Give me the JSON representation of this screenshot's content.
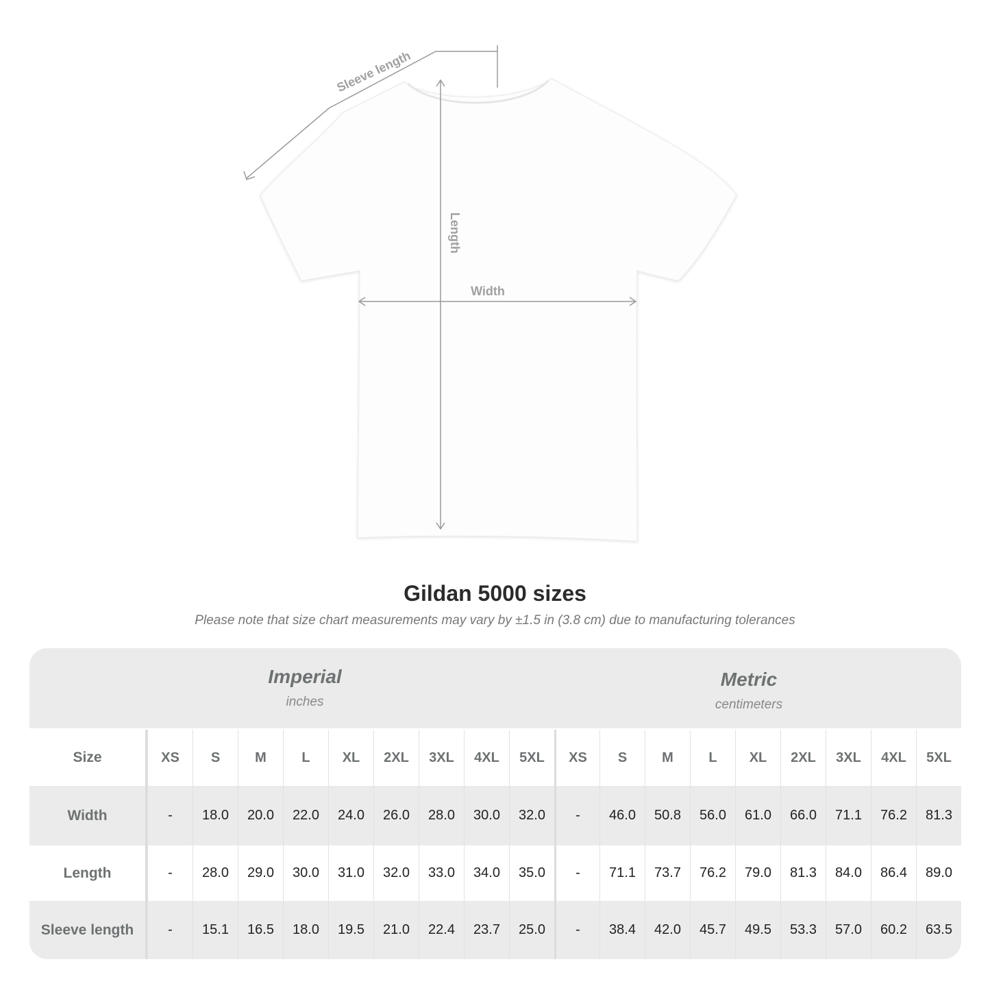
{
  "diagram": {
    "labels": {
      "sleeve": "Sleeve length",
      "length": "Length",
      "width": "Width"
    }
  },
  "title": "Gildan 5000 sizes",
  "note": "Please note that size chart measurements may vary by ±1.5 in (3.8 cm) due to manufacturing tolerances",
  "table": {
    "imperial": {
      "name": "Imperial",
      "unit": "inches"
    },
    "metric": {
      "name": "Metric",
      "unit": "centimeters"
    },
    "size_label": "Size",
    "sizes": [
      "XS",
      "S",
      "M",
      "L",
      "XL",
      "2XL",
      "3XL",
      "4XL",
      "5XL"
    ],
    "rows": [
      {
        "label": "Width",
        "imperial": [
          "-",
          "18.0",
          "20.0",
          "22.0",
          "24.0",
          "26.0",
          "28.0",
          "30.0",
          "32.0"
        ],
        "metric": [
          "-",
          "46.0",
          "50.8",
          "56.0",
          "61.0",
          "66.0",
          "71.1",
          "76.2",
          "81.3"
        ]
      },
      {
        "label": "Length",
        "imperial": [
          "-",
          "28.0",
          "29.0",
          "30.0",
          "31.0",
          "32.0",
          "33.0",
          "34.0",
          "35.0"
        ],
        "metric": [
          "-",
          "71.1",
          "73.7",
          "76.2",
          "79.0",
          "81.3",
          "84.0",
          "86.4",
          "89.0"
        ]
      },
      {
        "label": "Sleeve length",
        "imperial": [
          "-",
          "15.1",
          "16.5",
          "18.0",
          "19.5",
          "21.0",
          "22.4",
          "23.7",
          "25.0"
        ],
        "metric": [
          "-",
          "38.4",
          "42.0",
          "45.7",
          "49.5",
          "53.3",
          "57.0",
          "60.2",
          "63.5"
        ]
      }
    ]
  },
  "colors": {
    "header_gray": "#ebebeb",
    "label_gray": "#6d7172",
    "measure_line": "#9a9a9a"
  }
}
